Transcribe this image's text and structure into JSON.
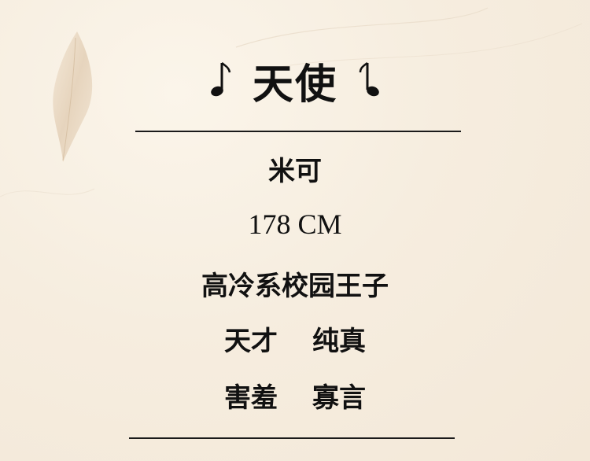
{
  "title": "天使",
  "name": "米可",
  "height": "178 CM",
  "description": "高冷系校园王子",
  "traits_row1": [
    "天才",
    "纯真"
  ],
  "traits_row2": [
    "害羞",
    "寡言"
  ],
  "icons": {
    "left_note": "music-note-icon",
    "right_note": "music-note-icon",
    "feather": "feather-icon"
  },
  "colors": {
    "background": "#f6eddf",
    "text": "#111111",
    "rule": "#1a1a1a"
  }
}
